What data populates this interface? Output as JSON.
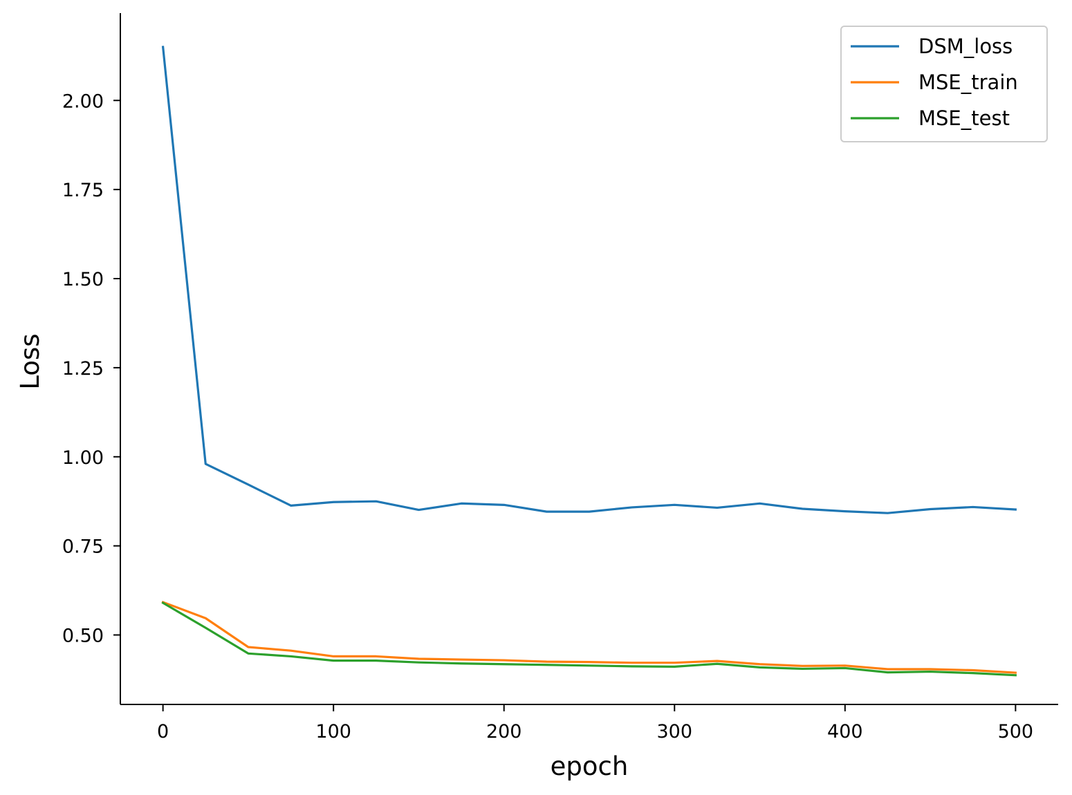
{
  "chart_data": {
    "type": "line",
    "title": "",
    "xlabel": "epoch",
    "ylabel": "Loss",
    "xlim": [
      -25,
      525
    ],
    "ylim": [
      0.305,
      2.245
    ],
    "xticks": [
      0,
      100,
      200,
      300,
      400,
      500
    ],
    "xtick_labels": [
      "0",
      "100",
      "200",
      "300",
      "400",
      "500"
    ],
    "yticks": [
      0.5,
      0.75,
      1.0,
      1.25,
      1.5,
      1.75,
      2.0
    ],
    "ytick_labels": [
      "0.50",
      "0.75",
      "1.00",
      "1.25",
      "1.50",
      "1.75",
      "2.00"
    ],
    "grid": false,
    "legend_position": "top-right",
    "x": [
      0,
      25,
      50,
      75,
      100,
      125,
      150,
      175,
      200,
      225,
      250,
      275,
      300,
      325,
      350,
      375,
      400,
      425,
      450,
      475,
      500
    ],
    "series": [
      {
        "name": "DSM_loss",
        "color": "#1f77b4",
        "values": [
          2.15,
          0.98,
          0.922,
          0.863,
          0.873,
          0.875,
          0.851,
          0.869,
          0.865,
          0.846,
          0.846,
          0.858,
          0.865,
          0.857,
          0.869,
          0.854,
          0.847,
          0.842,
          0.853,
          0.859,
          0.852
        ]
      },
      {
        "name": "MSE_train",
        "color": "#ff7f0e",
        "values": [
          0.592,
          0.547,
          0.466,
          0.456,
          0.44,
          0.44,
          0.433,
          0.431,
          0.429,
          0.425,
          0.424,
          0.422,
          0.422,
          0.427,
          0.418,
          0.413,
          0.414,
          0.404,
          0.404,
          0.401,
          0.394
        ]
      },
      {
        "name": "MSE_test",
        "color": "#2ca02c",
        "values": [
          0.59,
          0.52,
          0.448,
          0.44,
          0.428,
          0.428,
          0.423,
          0.42,
          0.418,
          0.416,
          0.414,
          0.412,
          0.411,
          0.419,
          0.409,
          0.405,
          0.407,
          0.395,
          0.397,
          0.393,
          0.387
        ]
      }
    ]
  }
}
